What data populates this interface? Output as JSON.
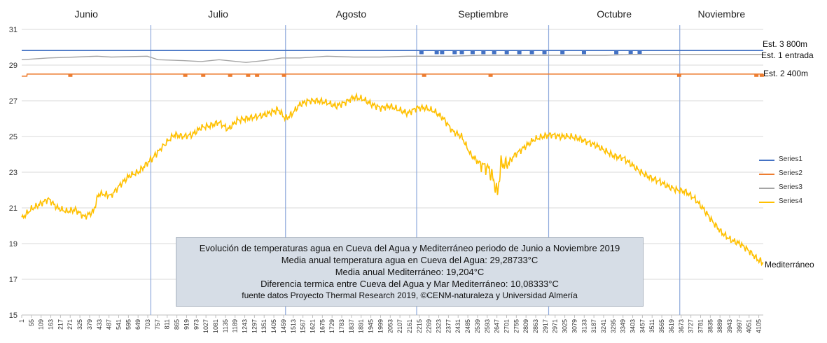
{
  "months": [
    "Junio",
    "Julio",
    "Agosto",
    "Septiembre",
    "Octubre",
    "Noviembre"
  ],
  "series_labels": {
    "s1": "Est. 3 800m",
    "s3": "Est. 1 entrada",
    "s2": "Est. 2 400m",
    "s4": "Mediterráneo"
  },
  "legend": [
    "Series1",
    "Series2",
    "Series3",
    "Series4"
  ],
  "info_box": {
    "line1": "Evolución de temperaturas agua en Cueva del Agua y Mediterráneo periodo de Junio a Noviembre 2019",
    "line2": "Media anual temperatura agua en Cueva del Agua: 29,28733°C",
    "line3": "Media anual Mediterráneo: 19,204°C",
    "line4": "Diferencia termica entre Cueva del Agua y Mar Mediterráneo: 10,08333°C",
    "line5": "fuente datos Proyecto Thermal Research 2019, ©CENM-naturaleza y Universidad Almería"
  },
  "colors": {
    "series1": "#4472c4",
    "series2": "#ed7d31",
    "series3": "#a5a5a5",
    "series4": "#ffc000",
    "month_divider": "#8faadc",
    "grid": "#d9d9d9"
  },
  "chart_data": {
    "type": "line",
    "x_ticks": [
      1,
      55,
      109,
      163,
      217,
      271,
      325,
      379,
      433,
      487,
      541,
      595,
      649,
      703,
      757,
      811,
      865,
      919,
      973,
      1027,
      1081,
      1135,
      1189,
      1243,
      1297,
      1351,
      1405,
      1459,
      1513,
      1567,
      1621,
      1675,
      1729,
      1783,
      1837,
      1891,
      1945,
      1999,
      2053,
      2107,
      2161,
      2215,
      2269,
      2323,
      2377,
      2431,
      2485,
      2539,
      2593,
      2647,
      2701,
      2755,
      2809,
      2863,
      2917,
      2971,
      3025,
      3079,
      3133,
      3187,
      3241,
      3295,
      3349,
      3403,
      3457,
      3511,
      3565,
      3619,
      3673,
      3727,
      3781,
      3835,
      3889,
      3943,
      3997,
      4051,
      4105
    ],
    "y_ticks": [
      15,
      17,
      19,
      21,
      23,
      25,
      27,
      29,
      31
    ],
    "ylim": [
      15,
      31
    ],
    "xlim": [
      1,
      4130
    ],
    "month_boundaries": [
      720,
      1470,
      2200,
      2935,
      3665
    ],
    "grid": true,
    "legend_position": "right",
    "series": [
      {
        "name": "Series1",
        "x": [
          1,
          4130
        ],
        "y": [
          29.82,
          29.82
        ],
        "blips_x": [
          2215,
          2300,
          2330,
          2400,
          2440,
          2500,
          2560,
          2620,
          2690,
          2760,
          2830,
          2900,
          3000,
          3120,
          3300,
          3380,
          3430
        ],
        "blip_y": 29.65
      },
      {
        "name": "Series2",
        "x": [
          1,
          30,
          31,
          4130
        ],
        "y": [
          28.38,
          28.38,
          28.5,
          28.5
        ],
        "blips_x": [
          260,
          900,
          1000,
          1150,
          1250,
          1300,
          1450,
          2230,
          2600,
          3650,
          4080,
          4110
        ],
        "blip_y": 28.38
      },
      {
        "name": "Series3",
        "x": [
          1,
          150,
          300,
          420,
          500,
          700,
          760,
          900,
          1000,
          1100,
          1250,
          1350,
          1450,
          1550,
          1700,
          1850,
          2000,
          2150,
          2250,
          2400,
          2550,
          2700,
          2850,
          2950,
          3100,
          3250,
          3400,
          3550,
          3700,
          3850,
          4130
        ],
        "y": [
          29.3,
          29.4,
          29.45,
          29.5,
          29.45,
          29.5,
          29.3,
          29.25,
          29.2,
          29.3,
          29.15,
          29.25,
          29.4,
          29.4,
          29.5,
          29.45,
          29.45,
          29.5,
          29.5,
          29.5,
          29.55,
          29.55,
          29.55,
          29.55,
          29.55,
          29.55,
          29.6,
          29.6,
          29.6,
          29.6,
          29.6
        ]
      },
      {
        "name": "Series4",
        "x": [
          1,
          50,
          100,
          150,
          200,
          250,
          300,
          350,
          400,
          430,
          500,
          550,
          600,
          650,
          700,
          730,
          800,
          850,
          900,
          950,
          1000,
          1050,
          1100,
          1150,
          1200,
          1250,
          1300,
          1350,
          1400,
          1430,
          1470,
          1500,
          1550,
          1600,
          1650,
          1700,
          1750,
          1800,
          1850,
          1900,
          1950,
          2000,
          2050,
          2100,
          2150,
          2200,
          2250,
          2300,
          2350,
          2400,
          2450,
          2500,
          2550,
          2600,
          2620,
          2650,
          2670,
          2700,
          2750,
          2800,
          2850,
          2900,
          2950,
          3000,
          3050,
          3100,
          3150,
          3200,
          3250,
          3300,
          3350,
          3400,
          3450,
          3500,
          3550,
          3600,
          3650,
          3700,
          3750,
          3800,
          3850,
          3900,
          3950,
          4000,
          4050,
          4100,
          4130
        ],
        "y": [
          20.4,
          20.9,
          21.2,
          21.5,
          21.0,
          20.8,
          20.9,
          20.5,
          20.8,
          21.8,
          21.7,
          22.3,
          22.8,
          23.0,
          23.5,
          23.8,
          24.6,
          25.1,
          25.0,
          25.1,
          25.5,
          25.6,
          25.8,
          25.4,
          25.9,
          26.0,
          26.1,
          26.2,
          26.4,
          26.5,
          26.0,
          26.2,
          26.8,
          27.0,
          27.0,
          26.9,
          26.7,
          26.9,
          27.2,
          27.1,
          26.8,
          26.6,
          26.7,
          26.5,
          26.3,
          26.6,
          26.6,
          26.4,
          26.0,
          25.3,
          25.0,
          24.0,
          23.5,
          23.2,
          22.8,
          21.8,
          23.5,
          23.4,
          24.0,
          24.4,
          24.8,
          25.0,
          25.1,
          25.0,
          25.0,
          24.9,
          24.7,
          24.5,
          24.2,
          23.9,
          23.8,
          23.4,
          23.0,
          22.7,
          22.5,
          22.2,
          22.0,
          21.9,
          21.5,
          20.9,
          20.2,
          19.6,
          19.2,
          19.0,
          18.6,
          18.1,
          17.9
        ]
      }
    ]
  }
}
